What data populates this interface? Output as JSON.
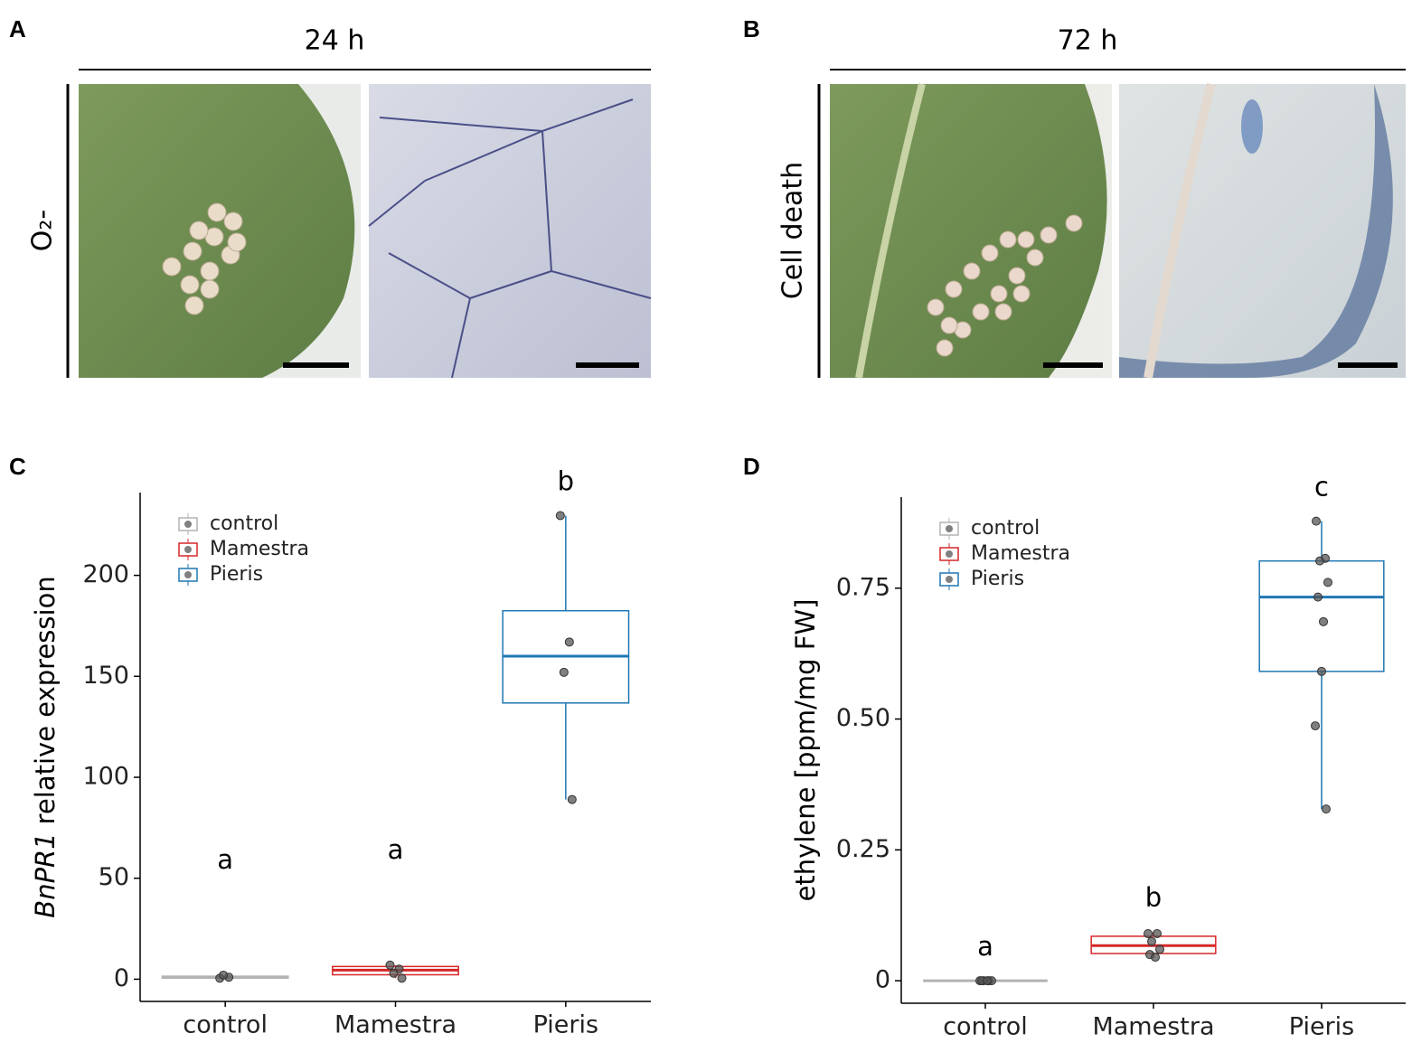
{
  "panels": [
    {
      "label": "A",
      "time": "24 h",
      "stain": "O₂-"
    },
    {
      "label": "B",
      "time": "72 h",
      "stain": "Cell death"
    }
  ],
  "chart_data": [
    {
      "type": "box",
      "panel_label": "C",
      "ylabel": [
        "BnPR1",
        "relative expression"
      ],
      "categories": [
        "control",
        "Mamestra",
        "Pieris"
      ],
      "letters": [
        "a",
        "a",
        "b"
      ],
      "ylim": [
        -11,
        241
      ],
      "yticks": [
        0,
        50,
        100,
        150,
        200
      ],
      "series": [
        {
          "name": "control",
          "color": "#b3b3b3",
          "min": 0,
          "q1": 0.5,
          "median": 1,
          "q3": 1.5,
          "max": 2,
          "points": [
            0.5,
            1,
            2
          ]
        },
        {
          "name": "Mamestra",
          "color": "#d62728",
          "min": 0.5,
          "q1": 2.2,
          "median": 4.5,
          "q3": 6.3,
          "max": 7,
          "points": [
            7,
            5,
            3,
            0.5
          ]
        },
        {
          "name": "Pieris",
          "color": "#1f77b4",
          "min": 89,
          "q1": 136.8,
          "median": 160,
          "q3": 182.5,
          "max": 229.6,
          "points": [
            229.6,
            167,
            152,
            89
          ]
        }
      ]
    },
    {
      "type": "box",
      "panel_label": "D",
      "ylabel": [
        "ethylene [ppm/mg FW]"
      ],
      "categories": [
        "control",
        "Mamestra",
        "Pieris"
      ],
      "letters": [
        "a",
        "b",
        "c"
      ],
      "ylim": [
        -0.043,
        0.924
      ],
      "yticks": [
        0,
        0.25,
        {
          "value": 0.5,
          "label": "0.50"
        },
        0.75
      ],
      "series": [
        {
          "name": "control",
          "color": "#b3b3b3",
          "min": 0,
          "q1": 0,
          "median": 0,
          "q3": 0,
          "max": 0,
          "points": [
            0,
            0,
            0,
            0,
            0,
            0
          ]
        },
        {
          "name": "Mamestra",
          "color": "#d62728",
          "min": 0.043,
          "q1": 0.052,
          "median": 0.067,
          "q3": 0.085,
          "max": 0.093,
          "points": [
            0.09,
            0.09,
            0.075,
            0.06,
            0.05,
            0.045
          ]
        },
        {
          "name": "Pieris",
          "color": "#1f77b4",
          "min": 0.328,
          "q1": 0.591,
          "median": 0.733,
          "q3": 0.802,
          "max": 0.878,
          "points": [
            0.878,
            0.807,
            0.802,
            0.761,
            0.733,
            0.686,
            0.591,
            0.487,
            0.328
          ]
        }
      ]
    }
  ]
}
